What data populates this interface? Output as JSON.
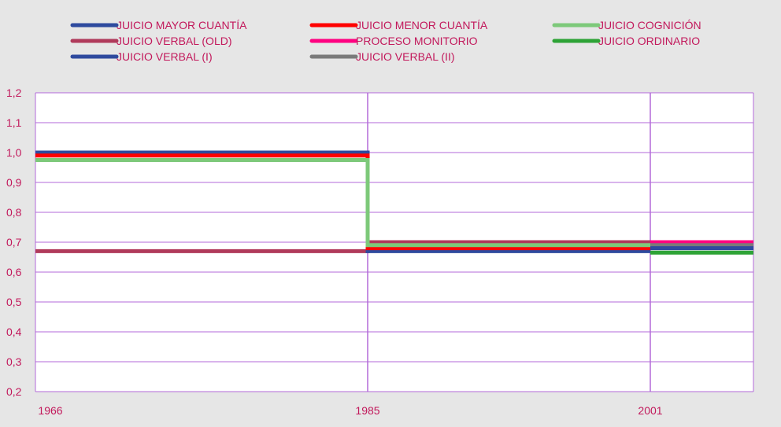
{
  "chart_data": {
    "type": "line",
    "step": true,
    "title": "",
    "xlabel": "",
    "ylabel": "",
    "x_ticks": [
      "1966",
      "1985",
      "2001"
    ],
    "ylim": [
      0.2,
      1.2
    ],
    "y_ticks": [
      "0,2",
      "0,3",
      "0,4",
      "0,5",
      "0,6",
      "0,7",
      "0,8",
      "0,9",
      "1,0",
      "1,1",
      "1,2"
    ],
    "vertical_gridlines_at": [
      "1985",
      "2001"
    ],
    "legend_position": "top",
    "colors": {
      "axis": "#c2185b",
      "grid": "#b36ad9",
      "plot_background": "#ffffff",
      "page_background": "#e6e6e6"
    },
    "series": [
      {
        "name": "JUICIO VERBAL (OLD)",
        "color": "#b03a5b",
        "segments": [
          {
            "from": "1966",
            "to": "1985",
            "value": 0.67
          },
          {
            "from": "1985",
            "to": "2001",
            "value": 0.7
          }
        ]
      },
      {
        "name": "JUICIO MAYOR CUANTÍA",
        "color": "#2e4a9e",
        "segments": [
          {
            "from": "1966",
            "to": "1985",
            "value": 1.0
          },
          {
            "from": "1985",
            "to": "2001",
            "value": 0.67
          }
        ]
      },
      {
        "name": "JUICIO MENOR CUANTÍA",
        "color": "#ff0000",
        "segments": [
          {
            "from": "1966",
            "to": "1985",
            "value": 0.99
          },
          {
            "from": "1985",
            "to": "2001",
            "value": 0.68
          }
        ]
      },
      {
        "name": "JUICIO COGNICIÓN",
        "color": "#7dc97a",
        "segments": [
          {
            "from": "1966",
            "to": "1985",
            "value": 0.975
          },
          {
            "from": "1985",
            "to": "2001",
            "value": 0.69
          }
        ]
      },
      {
        "name": "PROCESO MONITORIO",
        "color": "#ff0080",
        "segments": [
          {
            "from": "2001",
            "to": "end",
            "value": 0.7
          }
        ]
      },
      {
        "name": "JUICIO VERBAL (II)",
        "color": "#7a7a7a",
        "segments": [
          {
            "from": "2001",
            "to": "end",
            "value": 0.69
          }
        ]
      },
      {
        "name": "JUICIO VERBAL (I)",
        "color": "#2e4a9e",
        "segments": [
          {
            "from": "2001",
            "to": "end",
            "value": 0.68
          }
        ]
      },
      {
        "name": "JUICIO ORDINARIO",
        "color": "#2ea336",
        "segments": [
          {
            "from": "2001",
            "to": "end",
            "value": 0.665
          }
        ]
      }
    ],
    "legend": [
      {
        "name": "JUICIO MAYOR CUANTÍA",
        "color": "#2e4a9e"
      },
      {
        "name": "JUICIO MENOR CUANTÍA",
        "color": "#ff0000"
      },
      {
        "name": "JUICIO COGNICIÓN",
        "color": "#7dc97a"
      },
      {
        "name": "JUICIO VERBAL (OLD)",
        "color": "#b03a5b"
      },
      {
        "name": "PROCESO MONITORIO",
        "color": "#ff0080"
      },
      {
        "name": "JUICIO ORDINARIO",
        "color": "#2ea336"
      },
      {
        "name": "JUICIO VERBAL (I)",
        "color": "#2e4a9e"
      },
      {
        "name": "JUICIO VERBAL (II)",
        "color": "#7a7a7a"
      }
    ]
  }
}
